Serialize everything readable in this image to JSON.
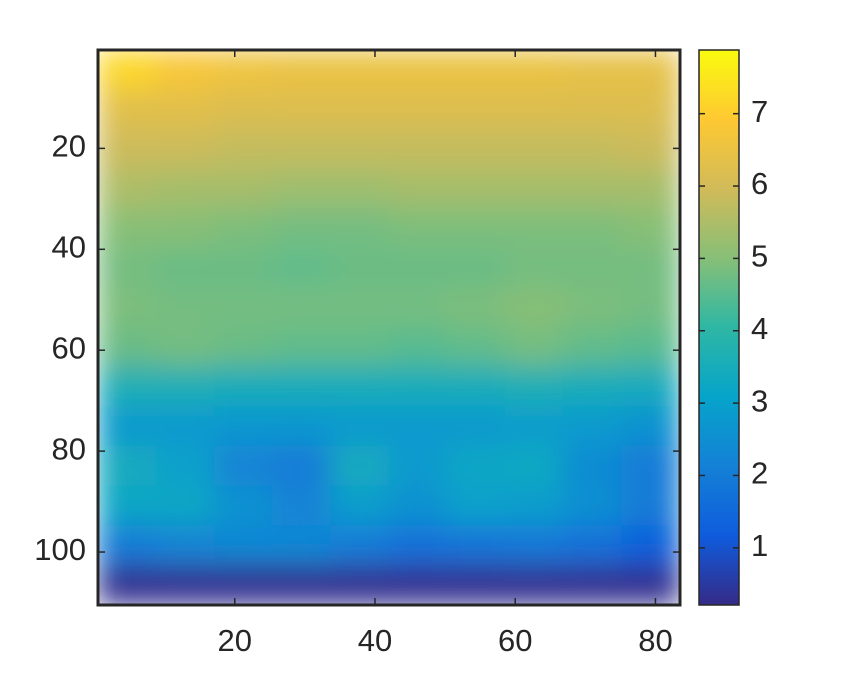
{
  "chart_data": {
    "type": "heatmap",
    "xlim": [
      0.5,
      83.5
    ],
    "xticks": [
      20,
      40,
      60,
      80
    ],
    "ylim": [
      0.5,
      110.5
    ],
    "yticks": [
      20,
      40,
      60,
      80,
      100
    ],
    "y_reversed": true,
    "clim": [
      0.21,
      7.88
    ],
    "cticks": [
      1,
      2,
      3,
      4,
      5,
      6,
      7
    ],
    "colormap": [
      "#352a87",
      "#0f5cdd",
      "#1481d6",
      "#06a4ca",
      "#2eb7a4",
      "#87bf77",
      "#d1bb59",
      "#fec832",
      "#f9fb0e"
    ],
    "z": [
      [
        7.2,
        6.8,
        6.6,
        6.5,
        6.5,
        6.5,
        6.5,
        6.5,
        6.4,
        6.4
      ],
      [
        6.3,
        6.3,
        6.2,
        6.2,
        6.2,
        6.2,
        6.2,
        6.2,
        6.2,
        6.2
      ],
      [
        5.9,
        5.9,
        5.8,
        5.8,
        5.8,
        5.8,
        5.8,
        5.8,
        5.8,
        5.9
      ],
      [
        5.5,
        5.4,
        5.4,
        5.3,
        5.3,
        5.4,
        5.4,
        5.4,
        5.4,
        5.4
      ],
      [
        5.0,
        5.0,
        4.9,
        4.8,
        4.8,
        4.9,
        4.9,
        4.9,
        4.9,
        5.0
      ],
      [
        4.8,
        4.7,
        4.7,
        4.6,
        4.7,
        4.7,
        4.7,
        4.8,
        4.8,
        4.8
      ],
      [
        4.9,
        4.8,
        4.8,
        4.8,
        4.8,
        4.8,
        4.9,
        5.0,
        4.9,
        4.8
      ],
      [
        4.7,
        4.8,
        4.7,
        4.6,
        4.6,
        4.5,
        4.6,
        4.8,
        4.6,
        4.5
      ],
      [
        3.6,
        3.6,
        3.5,
        3.5,
        3.5,
        3.5,
        3.5,
        3.6,
        3.5,
        3.4
      ],
      [
        2.8,
        2.8,
        2.7,
        2.7,
        2.8,
        2.8,
        2.8,
        2.9,
        2.8,
        2.6
      ],
      [
        3.4,
        3.0,
        2.2,
        2.0,
        3.4,
        2.8,
        3.2,
        3.3,
        2.4,
        2.0
      ],
      [
        3.2,
        3.2,
        2.6,
        2.2,
        2.9,
        2.6,
        3.0,
        2.9,
        2.5,
        2.0
      ],
      [
        2.0,
        2.2,
        2.3,
        2.3,
        2.0,
        1.7,
        1.8,
        1.9,
        1.7,
        1.3
      ],
      [
        0.3,
        0.3,
        0.3,
        0.3,
        0.3,
        0.3,
        0.3,
        0.3,
        0.3,
        0.3
      ]
    ]
  }
}
